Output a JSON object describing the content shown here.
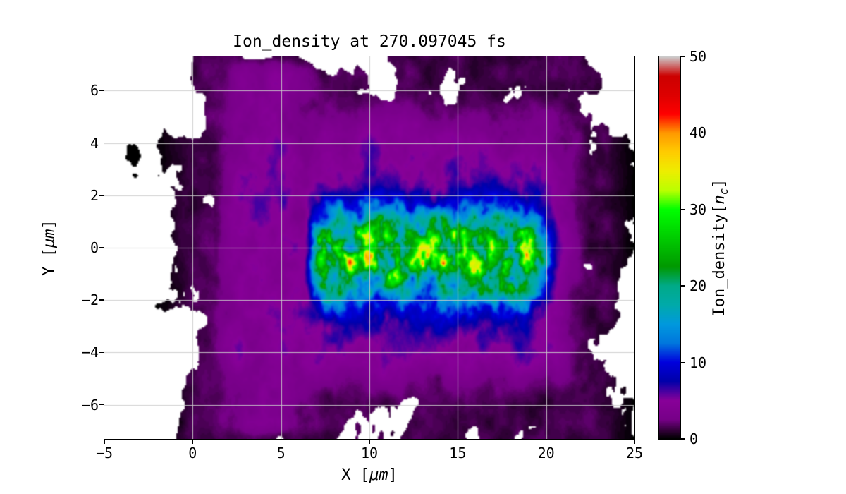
{
  "figure": {
    "background": "#ffffff",
    "text_color": "#000000",
    "grid_color": "#cccccc",
    "spine_color": "#000000",
    "vacuum_color": "#ffffff"
  },
  "chart_data": {
    "type": "heatmap",
    "title": "Ion_density at 270.097045 fs",
    "time_fs": 270.097045,
    "xlabel": "X [μm]",
    "xlabel_parts": {
      "pre": "X [",
      "unit": "μm",
      "post": "]"
    },
    "ylabel": "Y [μm]",
    "ylabel_parts": {
      "pre": "Y [",
      "unit": "μm",
      "post": "]"
    },
    "xlim": [
      -5,
      25
    ],
    "ylim": [
      -7.3,
      7.3
    ],
    "xticks": [
      -5,
      0,
      5,
      10,
      15,
      20,
      25
    ],
    "yticks": [
      6,
      4,
      2,
      0,
      -2,
      -4,
      -6
    ],
    "grid": true,
    "legend": "none",
    "colorbar": {
      "label": "Ion_density[n_c]",
      "label_parts": {
        "pre": "Ion_density[",
        "var": "n",
        "sub": "c",
        "post": "]"
      },
      "ticks": [
        0,
        10,
        20,
        30,
        40,
        50
      ],
      "vmin": 0,
      "vmax": 50,
      "position": "right"
    },
    "colormap": {
      "name": "nipy_spectral",
      "stops": [
        [
          0.0,
          [
            0,
            0,
            0
          ]
        ],
        [
          0.05,
          [
            119,
            0,
            136
          ]
        ],
        [
          0.1,
          [
            136,
            0,
            153
          ]
        ],
        [
          0.15,
          [
            0,
            0,
            170
          ]
        ],
        [
          0.2,
          [
            0,
            0,
            221
          ]
        ],
        [
          0.25,
          [
            0,
            119,
            221
          ]
        ],
        [
          0.3,
          [
            0,
            153,
            221
          ]
        ],
        [
          0.35,
          [
            0,
            170,
            170
          ]
        ],
        [
          0.4,
          [
            0,
            170,
            136
          ]
        ],
        [
          0.45,
          [
            0,
            153,
            0
          ]
        ],
        [
          0.5,
          [
            0,
            187,
            0
          ]
        ],
        [
          0.55,
          [
            0,
            221,
            0
          ]
        ],
        [
          0.6,
          [
            0,
            255,
            0
          ]
        ],
        [
          0.65,
          [
            187,
            255,
            0
          ]
        ],
        [
          0.7,
          [
            238,
            238,
            0
          ]
        ],
        [
          0.75,
          [
            255,
            204,
            0
          ]
        ],
        [
          0.8,
          [
            255,
            153,
            0
          ]
        ],
        [
          0.85,
          [
            255,
            0,
            0
          ]
        ],
        [
          0.9,
          [
            221,
            0,
            0
          ]
        ],
        [
          0.95,
          [
            204,
            0,
            0
          ]
        ],
        [
          1.0,
          [
            204,
            204,
            204
          ]
        ]
      ]
    },
    "regions": [
      {
        "name": "central-jet",
        "x_range": [
          6.5,
          20
        ],
        "y_center": -0.3,
        "y_sigma": 1.2,
        "peak_density": 35,
        "typical_density": [
          10,
          30
        ]
      },
      {
        "name": "bulk-plasma",
        "x_range": [
          2,
          22
        ],
        "y_range": [
          -5.5,
          5.5
        ],
        "typical_density": [
          3,
          7
        ]
      },
      {
        "name": "left-column",
        "x_range": [
          2.5,
          6
        ],
        "y_range": [
          -7.3,
          7.3
        ],
        "typical_density": [
          4,
          6
        ]
      },
      {
        "name": "dark-halo",
        "x_range": [
          -1,
          25
        ],
        "y_range": [
          -7.3,
          7.3
        ],
        "typical_density": [
          0.5,
          3
        ]
      },
      {
        "name": "vacuum",
        "typical_density": 0,
        "rendered": "white"
      }
    ],
    "render": {
      "seed": 7,
      "vacuum_threshold": 0.45,
      "interpolation": "bilinear"
    }
  }
}
